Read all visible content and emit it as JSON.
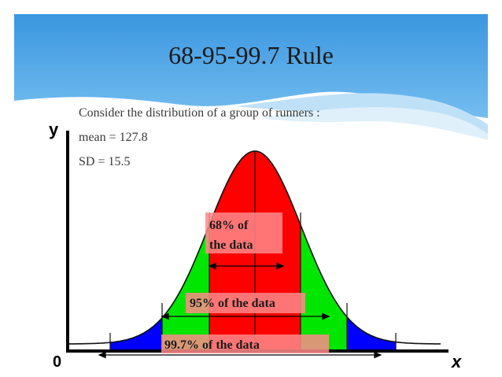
{
  "slide": {
    "title": "68-95-99.7 Rule",
    "intro": "Consider the distribution of a group of runners :",
    "mean_line": "mean = 127.8",
    "sd_line": "SD = 15.5"
  },
  "diagram": {
    "y_axis_label": "y",
    "x_axis_label": "x",
    "origin_label": "0",
    "band_68_line1": "68% of",
    "band_68_line2": "the data",
    "band_95": "95% of the data",
    "band_997": "99.7% of the data"
  },
  "colors": {
    "header_blue": "#3d9de3",
    "band_68": "#ff0000",
    "band_95": "#00e000",
    "band_997": "#0000ff",
    "label_box": "#ff8080"
  }
}
